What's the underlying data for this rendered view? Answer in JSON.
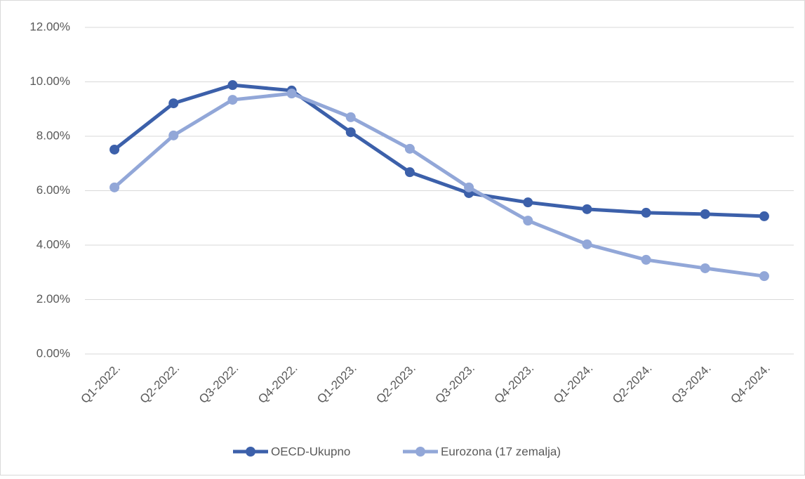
{
  "chart_data": {
    "type": "line",
    "categories": [
      "Q1-2022.",
      "Q2-2022.",
      "Q3-2022.",
      "Q4-2022.",
      "Q1-2023.",
      "Q2-2023.",
      "Q3-2023.",
      "Q4-2023.",
      "Q1-2024.",
      "Q2-2024.",
      "Q3-2024.",
      "Q4-2024."
    ],
    "series": [
      {
        "name": "OECD-Ukupno",
        "color": "#3c60aa",
        "values": [
          7.51,
          9.21,
          9.88,
          9.68,
          8.15,
          6.68,
          5.91,
          5.57,
          5.32,
          5.19,
          5.14,
          5.06
        ]
      },
      {
        "name": "Eurozona (17 zemalja)",
        "color": "#92a7d8",
        "values": [
          6.12,
          8.03,
          9.34,
          9.57,
          8.7,
          7.54,
          6.12,
          4.9,
          4.03,
          3.46,
          3.15,
          2.86
        ]
      }
    ],
    "ylim": [
      0,
      12
    ],
    "yticks": [
      {
        "value": 0,
        "label": "0.00%"
      },
      {
        "value": 2,
        "label": "2.00%"
      },
      {
        "value": 4,
        "label": "4.00%"
      },
      {
        "value": 6,
        "label": "6.00%"
      },
      {
        "value": 8,
        "label": "8.00%"
      },
      {
        "value": 10,
        "label": "10.00%"
      },
      {
        "value": 12,
        "label": "12.00%"
      }
    ],
    "grid": true,
    "legend": "bottom"
  }
}
